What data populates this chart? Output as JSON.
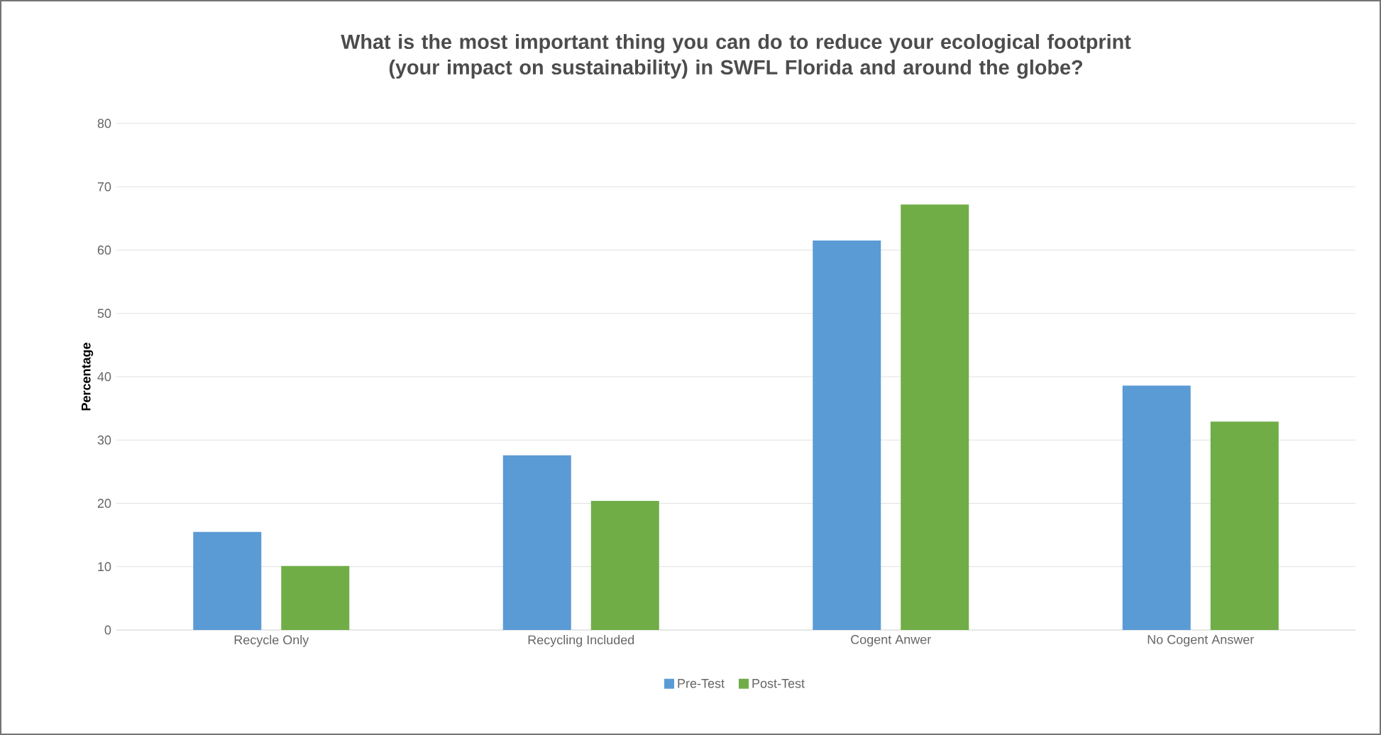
{
  "chart_data": {
    "type": "bar",
    "title": "What is the most important thing you can do to reduce your ecological footprint\n(your impact on sustainability) in SWFL Florida and around the globe?",
    "ylabel": "Percentage",
    "categories": [
      "Recycle Only",
      "Recycling Included",
      "Cogent Anwer",
      "No Cogent Answer"
    ],
    "series": [
      {
        "name": "Pre-Test",
        "color": "#5b9bd5",
        "values": [
          15.5,
          27.6,
          61.5,
          38.6
        ]
      },
      {
        "name": "Post-Test",
        "color": "#70ad47",
        "values": [
          10.1,
          20.4,
          67.2,
          32.9
        ]
      }
    ],
    "ylim": [
      0,
      80
    ],
    "yticks": [
      0,
      10,
      20,
      30,
      40,
      50,
      60,
      70,
      80
    ],
    "grid": "y",
    "legend": "bottom"
  }
}
